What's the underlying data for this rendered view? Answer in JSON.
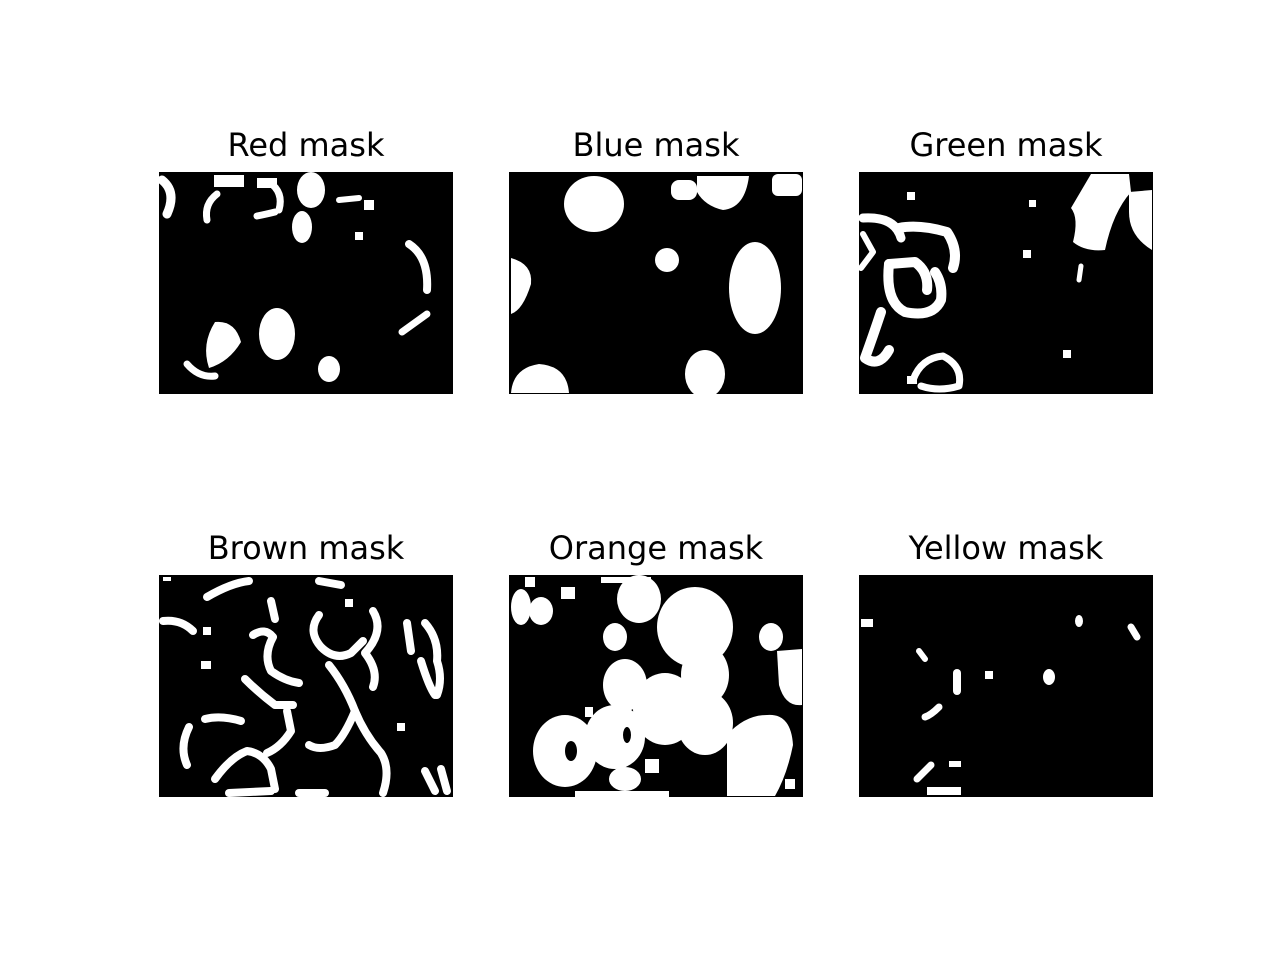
{
  "figure": {
    "background_color": "#ffffff",
    "mask_background_color": "#000000",
    "mask_foreground_color": "#ffffff",
    "panels": [
      {
        "title": "Red mask"
      },
      {
        "title": "Blue mask"
      },
      {
        "title": "Green mask"
      },
      {
        "title": "Brown mask"
      },
      {
        "title": "Orange mask"
      },
      {
        "title": "Yellow mask"
      }
    ]
  }
}
